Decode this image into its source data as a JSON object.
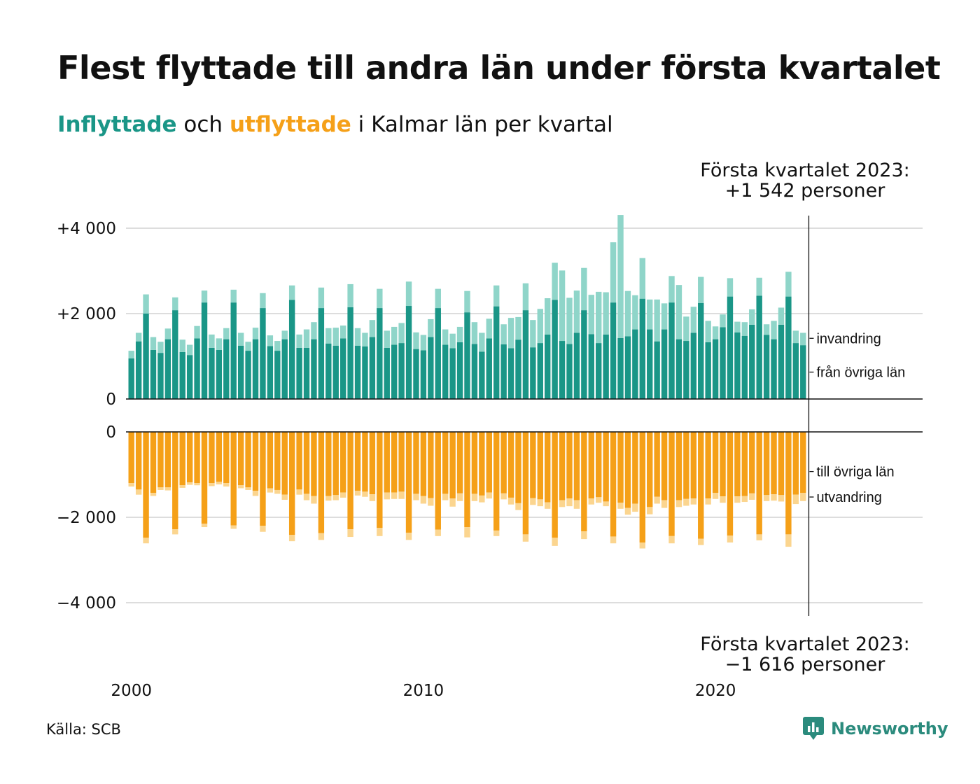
{
  "title": "Flest flyttade till andra län under första kvartalet",
  "subtitle": {
    "in_word": "Inflyttade",
    "mid": " och ",
    "out_word": "utflyttade",
    "tail": " i Kalmar län per kvartal"
  },
  "source": "Källa: SCB",
  "brand": "Newsworthy",
  "colors": {
    "in_main": "#1a9687",
    "in_light": "#8fd5c9",
    "out_main": "#f5a018",
    "out_light": "#fbd58f",
    "grid": "#dddddd",
    "axis": "#111111"
  },
  "annotations": {
    "top": [
      "Första kvartalet 2023:",
      "+1 542 personer"
    ],
    "bottom": [
      "Första kvartalet 2023:",
      "−1 616 personer"
    ]
  },
  "chart_data": [
    {
      "type": "bar",
      "stacked": true,
      "panel": "inflyttade",
      "yticks": [
        0,
        2000,
        4000
      ],
      "ytick_labels": [
        "0",
        "+2 000",
        "+4 000"
      ],
      "ylim": [
        0,
        4600
      ],
      "x_start_year": 2000,
      "x_ticks": [
        "2000",
        "2010",
        "2020"
      ],
      "series": [
        {
          "name": "från övriga län",
          "values": [
            950,
            1350,
            2000,
            1150,
            1080,
            1400,
            2080,
            1100,
            1030,
            1420,
            2260,
            1200,
            1150,
            1400,
            2260,
            1250,
            1130,
            1400,
            2130,
            1240,
            1130,
            1400,
            2320,
            1200,
            1200,
            1400,
            2130,
            1300,
            1250,
            1420,
            2150,
            1250,
            1230,
            1450,
            2130,
            1200,
            1270,
            1310,
            2180,
            1170,
            1140,
            1450,
            2130,
            1270,
            1190,
            1330,
            2030,
            1290,
            1110,
            1420,
            2170,
            1280,
            1190,
            1390,
            2080,
            1210,
            1310,
            1510,
            2320,
            1360,
            1290,
            1550,
            2080,
            1520,
            1310,
            1510,
            2260,
            1430,
            1470,
            1630,
            2350,
            1630,
            1350,
            1630,
            2260,
            1400,
            1360,
            1550,
            2250,
            1330,
            1400,
            1680,
            2400,
            1560,
            1480,
            1740,
            2420,
            1500,
            1400,
            1740,
            2400,
            1310,
            1260
          ]
        },
        {
          "name": "invandring",
          "values": [
            180,
            200,
            450,
            300,
            260,
            250,
            300,
            290,
            240,
            290,
            280,
            310,
            270,
            260,
            300,
            300,
            210,
            270,
            350,
            250,
            230,
            200,
            340,
            310,
            430,
            400,
            480,
            360,
            420,
            300,
            540,
            410,
            320,
            400,
            450,
            400,
            420,
            470,
            570,
            390,
            360,
            420,
            450,
            360,
            340,
            360,
            500,
            510,
            440,
            460,
            490,
            470,
            710,
            530,
            630,
            640,
            800,
            850,
            870,
            1650,
            1080,
            990,
            990,
            920,
            1200,
            990,
            1410,
            2880,
            1060,
            800,
            950,
            700,
            980,
            610,
            620,
            1270,
            570,
            610,
            610,
            500,
            300,
            300,
            430,
            250,
            320,
            360,
            420,
            250,
            430,
            400,
            580,
            290,
            290
          ]
        }
      ]
    },
    {
      "type": "bar",
      "stacked": true,
      "panel": "utflyttade",
      "yticks": [
        0,
        -2000,
        -4000
      ],
      "ytick_labels": [
        "0",
        "−2 000",
        "−4 000"
      ],
      "ylim": [
        -4400,
        0
      ],
      "series": [
        {
          "name": "till övriga län",
          "values": [
            -1200,
            -1350,
            -2480,
            -1430,
            -1300,
            -1300,
            -2280,
            -1250,
            -1180,
            -1200,
            -2150,
            -1200,
            -1170,
            -1200,
            -2190,
            -1250,
            -1300,
            -1380,
            -2200,
            -1320,
            -1360,
            -1470,
            -2410,
            -1350,
            -1450,
            -1500,
            -2370,
            -1500,
            -1480,
            -1420,
            -2280,
            -1380,
            -1400,
            -1460,
            -2250,
            -1420,
            -1420,
            -1400,
            -2360,
            -1450,
            -1500,
            -1550,
            -2290,
            -1450,
            -1560,
            -1440,
            -2230,
            -1450,
            -1490,
            -1420,
            -2310,
            -1440,
            -1540,
            -1670,
            -2400,
            -1550,
            -1580,
            -1650,
            -2480,
            -1600,
            -1560,
            -1600,
            -2330,
            -1560,
            -1530,
            -1630,
            -2450,
            -1660,
            -1780,
            -1680,
            -2590,
            -1760,
            -1520,
            -1600,
            -2440,
            -1600,
            -1570,
            -1560,
            -2500,
            -1560,
            -1430,
            -1510,
            -2430,
            -1510,
            -1500,
            -1440,
            -2400,
            -1480,
            -1460,
            -1480,
            -2400,
            -1470,
            -1430
          ]
        },
        {
          "name": "utvandring",
          "values": [
            -80,
            -120,
            -130,
            -70,
            -60,
            -70,
            -120,
            -60,
            -60,
            -50,
            -80,
            -70,
            -60,
            -80,
            -80,
            -70,
            -60,
            -120,
            -140,
            -100,
            -90,
            -120,
            -150,
            -120,
            -150,
            -180,
            -160,
            -110,
            -120,
            -120,
            -180,
            -110,
            -120,
            -160,
            -190,
            -160,
            -150,
            -170,
            -170,
            -150,
            -180,
            -180,
            -150,
            -150,
            -190,
            -180,
            -240,
            -170,
            -160,
            -140,
            -130,
            -140,
            -160,
            -160,
            -170,
            -160,
            -160,
            -150,
            -190,
            -160,
            -180,
            -200,
            -180,
            -140,
            -130,
            -110,
            -160,
            -140,
            -160,
            -190,
            -140,
            -170,
            -160,
            -180,
            -170,
            -160,
            -160,
            -140,
            -150,
            -140,
            -140,
            -150,
            -160,
            -150,
            -140,
            -150,
            -140,
            -140,
            -150,
            -150,
            -290,
            -220,
            -190
          ]
        }
      ]
    }
  ]
}
